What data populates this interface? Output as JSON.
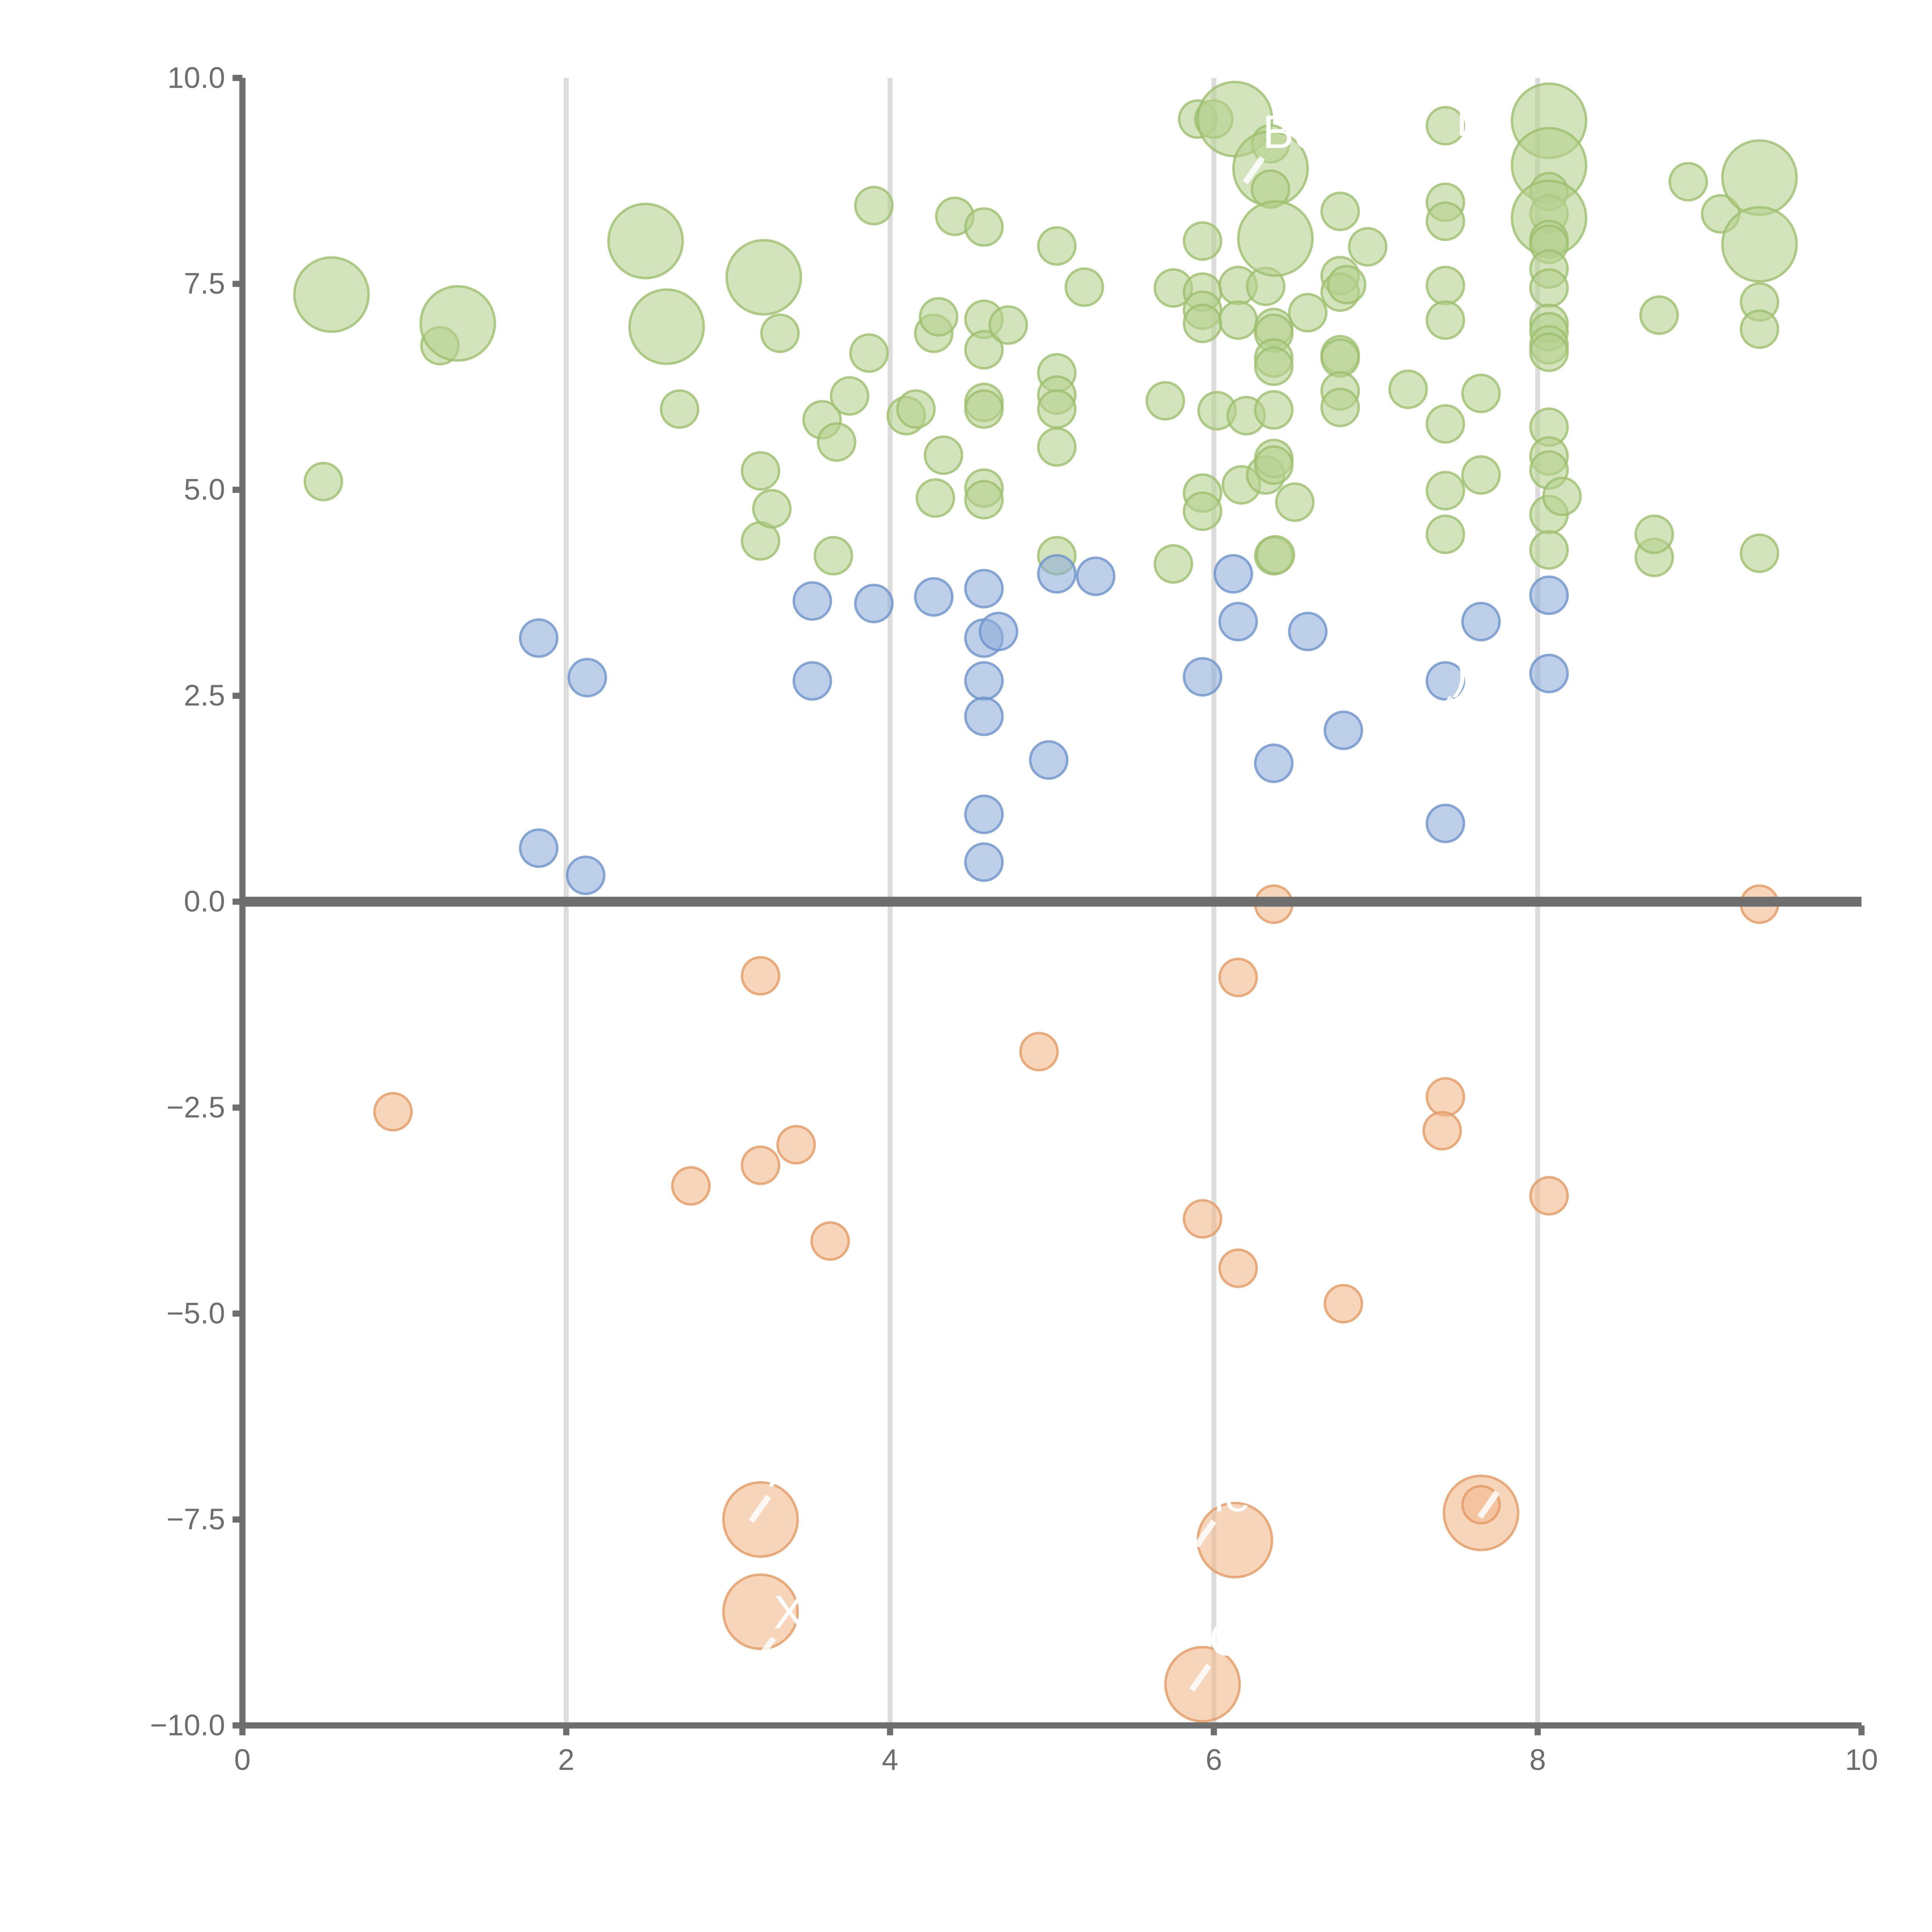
{
  "chart_data": {
    "type": "scatter",
    "xlim": [
      0,
      10
    ],
    "ylim": [
      -10,
      10
    ],
    "x_ticks": [
      "0",
      "2",
      "4",
      "6",
      "8",
      "10"
    ],
    "y_ticks": [
      "−10.0",
      "−7.5",
      "−5.0",
      "−2.5",
      "0.0",
      "2.5",
      "5.0",
      "7.5",
      "10.0"
    ],
    "grid": "vertical",
    "zero_line": true,
    "colors": {
      "green": "#b5d08f",
      "green_edge": "#9dbf6e",
      "blue": "#8fadd9",
      "blue_edge": "#6d93cb",
      "orange": "#f2b98d",
      "orange_edge": "#e49a63"
    },
    "series": [
      {
        "color_key": "green",
        "points": [
          [
            0.5,
            5.1,
            1
          ],
          [
            0.55,
            7.37,
            2
          ],
          [
            1.22,
            6.75,
            1
          ],
          [
            1.33,
            7.02,
            2
          ],
          [
            2.49,
            8.02,
            2
          ],
          [
            2.62,
            6.98,
            2
          ],
          [
            2.7,
            5.98,
            1
          ],
          [
            3.22,
            7.58,
            2
          ],
          [
            3.2,
            5.23,
            1
          ],
          [
            3.2,
            4.38,
            1
          ],
          [
            3.27,
            4.77,
            1
          ],
          [
            3.32,
            6.9,
            1
          ],
          [
            3.58,
            5.85,
            1
          ],
          [
            3.65,
            4.2,
            1
          ],
          [
            3.67,
            5.58,
            1
          ],
          [
            3.75,
            6.14,
            1
          ],
          [
            3.87,
            6.66,
            1
          ],
          [
            3.9,
            8.45,
            1
          ],
          [
            4.1,
            5.9,
            1
          ],
          [
            4.16,
            5.98,
            1
          ],
          [
            4.27,
            6.9,
            1
          ],
          [
            4.3,
            7.1,
            1
          ],
          [
            4.28,
            4.9,
            1
          ],
          [
            4.33,
            5.42,
            1
          ],
          [
            4.4,
            8.32,
            1
          ],
          [
            4.58,
            8.19,
            1
          ],
          [
            4.58,
            7.07,
            1
          ],
          [
            4.58,
            6.7,
            1
          ],
          [
            4.58,
            6.06,
            1
          ],
          [
            4.58,
            5.98,
            1
          ],
          [
            4.58,
            5.02,
            1
          ],
          [
            4.58,
            4.88,
            1
          ],
          [
            4.73,
            7.0,
            1
          ],
          [
            5.03,
            7.96,
            1
          ],
          [
            5.03,
            6.42,
            1
          ],
          [
            5.03,
            6.15,
            1
          ],
          [
            5.03,
            5.98,
            1
          ],
          [
            5.03,
            5.52,
            1
          ],
          [
            5.03,
            4.2,
            1
          ],
          [
            5.2,
            7.46,
            1
          ],
          [
            5.7,
            6.08,
            1
          ],
          [
            5.75,
            4.1,
            1
          ],
          [
            5.75,
            7.45,
            1
          ],
          [
            5.9,
            9.5,
            1
          ],
          [
            5.93,
            8.02,
            1
          ],
          [
            5.93,
            7.4,
            1
          ],
          [
            5.93,
            7.18,
            1
          ],
          [
            5.93,
            7.02,
            1
          ],
          [
            5.93,
            4.96,
            1
          ],
          [
            5.93,
            4.74,
            1
          ],
          [
            6.0,
            9.5,
            1
          ],
          [
            6.02,
            5.96,
            1
          ],
          [
            6.13,
            9.5,
            2
          ],
          [
            6.15,
            7.48,
            1
          ],
          [
            6.15,
            7.06,
            1
          ],
          [
            6.17,
            5.06,
            1
          ],
          [
            6.2,
            5.9,
            1
          ],
          [
            6.32,
            7.47,
            1
          ],
          [
            6.32,
            5.18,
            1
          ],
          [
            6.35,
            9.2,
            1
          ],
          [
            6.35,
            8.9,
            2
          ],
          [
            6.35,
            8.65,
            1
          ],
          [
            6.37,
            6.97,
            1
          ],
          [
            6.37,
            6.9,
            1
          ],
          [
            6.37,
            6.6,
            1
          ],
          [
            6.37,
            6.5,
            1
          ],
          [
            6.37,
            5.97,
            1
          ],
          [
            6.37,
            5.38,
            1
          ],
          [
            6.37,
            5.3,
            1
          ],
          [
            6.37,
            4.2,
            1
          ],
          [
            6.38,
            4.21,
            1
          ],
          [
            6.38,
            8.05,
            2
          ],
          [
            6.5,
            4.85,
            1
          ],
          [
            6.58,
            7.15,
            1
          ],
          [
            6.78,
            8.38,
            1
          ],
          [
            6.78,
            7.6,
            1
          ],
          [
            6.78,
            7.4,
            1
          ],
          [
            6.78,
            6.64,
            1
          ],
          [
            6.78,
            6.6,
            1
          ],
          [
            6.78,
            6.2,
            1
          ],
          [
            6.78,
            6.0,
            1
          ],
          [
            6.82,
            7.49,
            1
          ],
          [
            6.95,
            7.95,
            1
          ],
          [
            7.2,
            6.22,
            1
          ],
          [
            7.43,
            9.42,
            1
          ],
          [
            7.43,
            8.49,
            1
          ],
          [
            7.43,
            8.26,
            1
          ],
          [
            7.43,
            7.48,
            1
          ],
          [
            7.43,
            7.06,
            1
          ],
          [
            7.43,
            5.8,
            1
          ],
          [
            7.43,
            4.99,
            1
          ],
          [
            7.43,
            4.46,
            1
          ],
          [
            7.65,
            6.17,
            1
          ],
          [
            7.65,
            5.18,
            1
          ],
          [
            8.07,
            9.48,
            2
          ],
          [
            8.07,
            8.94,
            2
          ],
          [
            8.07,
            8.62,
            1
          ],
          [
            8.07,
            8.35,
            1
          ],
          [
            8.07,
            8.3,
            2
          ],
          [
            8.07,
            8.04,
            1
          ],
          [
            8.07,
            7.98,
            1
          ],
          [
            8.07,
            7.68,
            1
          ],
          [
            8.07,
            7.45,
            1
          ],
          [
            8.07,
            7.02,
            1
          ],
          [
            8.07,
            6.92,
            1
          ],
          [
            8.07,
            6.76,
            1
          ],
          [
            8.07,
            6.67,
            1
          ],
          [
            8.07,
            5.76,
            1
          ],
          [
            8.07,
            5.41,
            1
          ],
          [
            8.07,
            5.24,
            1
          ],
          [
            8.07,
            4.7,
            1
          ],
          [
            8.07,
            4.27,
            1
          ],
          [
            8.15,
            4.92,
            1
          ],
          [
            8.72,
            4.18,
            1
          ],
          [
            8.72,
            4.46,
            1
          ],
          [
            8.75,
            7.12,
            1
          ],
          [
            8.93,
            8.74,
            1
          ],
          [
            9.13,
            8.35,
            1
          ],
          [
            9.37,
            8.79,
            2
          ],
          [
            9.37,
            7.98,
            2
          ],
          [
            9.37,
            7.28,
            1
          ],
          [
            9.37,
            6.95,
            1
          ],
          [
            9.37,
            4.23,
            1
          ]
        ]
      },
      {
        "color_key": "blue",
        "points": [
          [
            1.83,
            3.2,
            1
          ],
          [
            1.83,
            0.65,
            1
          ],
          [
            2.13,
            2.72,
            1
          ],
          [
            2.12,
            0.32,
            1
          ],
          [
            3.52,
            2.68,
            1
          ],
          [
            3.52,
            3.65,
            1
          ],
          [
            3.9,
            3.62,
            1
          ],
          [
            4.27,
            3.7,
            1
          ],
          [
            4.58,
            3.8,
            1
          ],
          [
            4.58,
            3.2,
            1
          ],
          [
            4.58,
            2.68,
            1
          ],
          [
            4.58,
            2.25,
            1
          ],
          [
            4.58,
            1.06,
            1
          ],
          [
            4.58,
            0.48,
            1
          ],
          [
            4.67,
            3.28,
            1
          ],
          [
            4.98,
            1.72,
            1
          ],
          [
            5.03,
            3.98,
            1
          ],
          [
            5.27,
            3.95,
            1
          ],
          [
            5.93,
            2.73,
            1
          ],
          [
            6.12,
            3.98,
            1
          ],
          [
            6.15,
            3.4,
            1
          ],
          [
            6.37,
            1.68,
            1
          ],
          [
            6.58,
            3.28,
            1
          ],
          [
            6.8,
            2.08,
            1
          ],
          [
            7.43,
            2.68,
            1
          ],
          [
            7.43,
            0.95,
            1
          ],
          [
            7.65,
            3.4,
            1
          ],
          [
            8.07,
            3.72,
            1
          ],
          [
            8.07,
            2.77,
            1
          ]
        ]
      },
      {
        "color_key": "orange",
        "points": [
          [
            0.93,
            -2.55,
            1
          ],
          [
            2.77,
            -3.45,
            1
          ],
          [
            3.2,
            -0.9,
            1
          ],
          [
            3.2,
            -3.2,
            1
          ],
          [
            3.42,
            -2.95,
            1
          ],
          [
            3.63,
            -4.12,
            1
          ],
          [
            3.2,
            -7.5,
            2
          ],
          [
            3.2,
            -8.62,
            2
          ],
          [
            4.92,
            -1.82,
            1
          ],
          [
            5.93,
            -3.85,
            1
          ],
          [
            5.93,
            -9.5,
            2
          ],
          [
            6.15,
            -0.92,
            1
          ],
          [
            6.15,
            -4.45,
            1
          ],
          [
            6.13,
            -7.75,
            2
          ],
          [
            6.37,
            -0.03,
            1
          ],
          [
            6.8,
            -4.88,
            1
          ],
          [
            7.43,
            -2.37,
            1
          ],
          [
            7.41,
            -2.78,
            1
          ],
          [
            7.65,
            -7.42,
            2
          ],
          [
            7.65,
            -7.32,
            1
          ],
          [
            8.07,
            -3.57,
            1
          ],
          [
            9.37,
            -0.03,
            1
          ]
        ]
      }
    ],
    "labels": [
      {
        "text": "Bo",
        "x": 6.3,
        "y": 9.15
      },
      {
        "text": "i",
        "x": 7.5,
        "y": 9.3
      },
      {
        "text": "A",
        "x": 3.25,
        "y": -7.1
      },
      {
        "text": "X",
        "x": 3.28,
        "y": -8.82
      },
      {
        "text": "le",
        "x": 6.0,
        "y": -7.4
      },
      {
        "text": "C",
        "x": 5.97,
        "y": -9.15
      },
      {
        "text": "C",
        "x": 7.75,
        "y": -7.05
      },
      {
        "text": ")",
        "x": 7.47,
        "y": 2.6
      }
    ]
  }
}
